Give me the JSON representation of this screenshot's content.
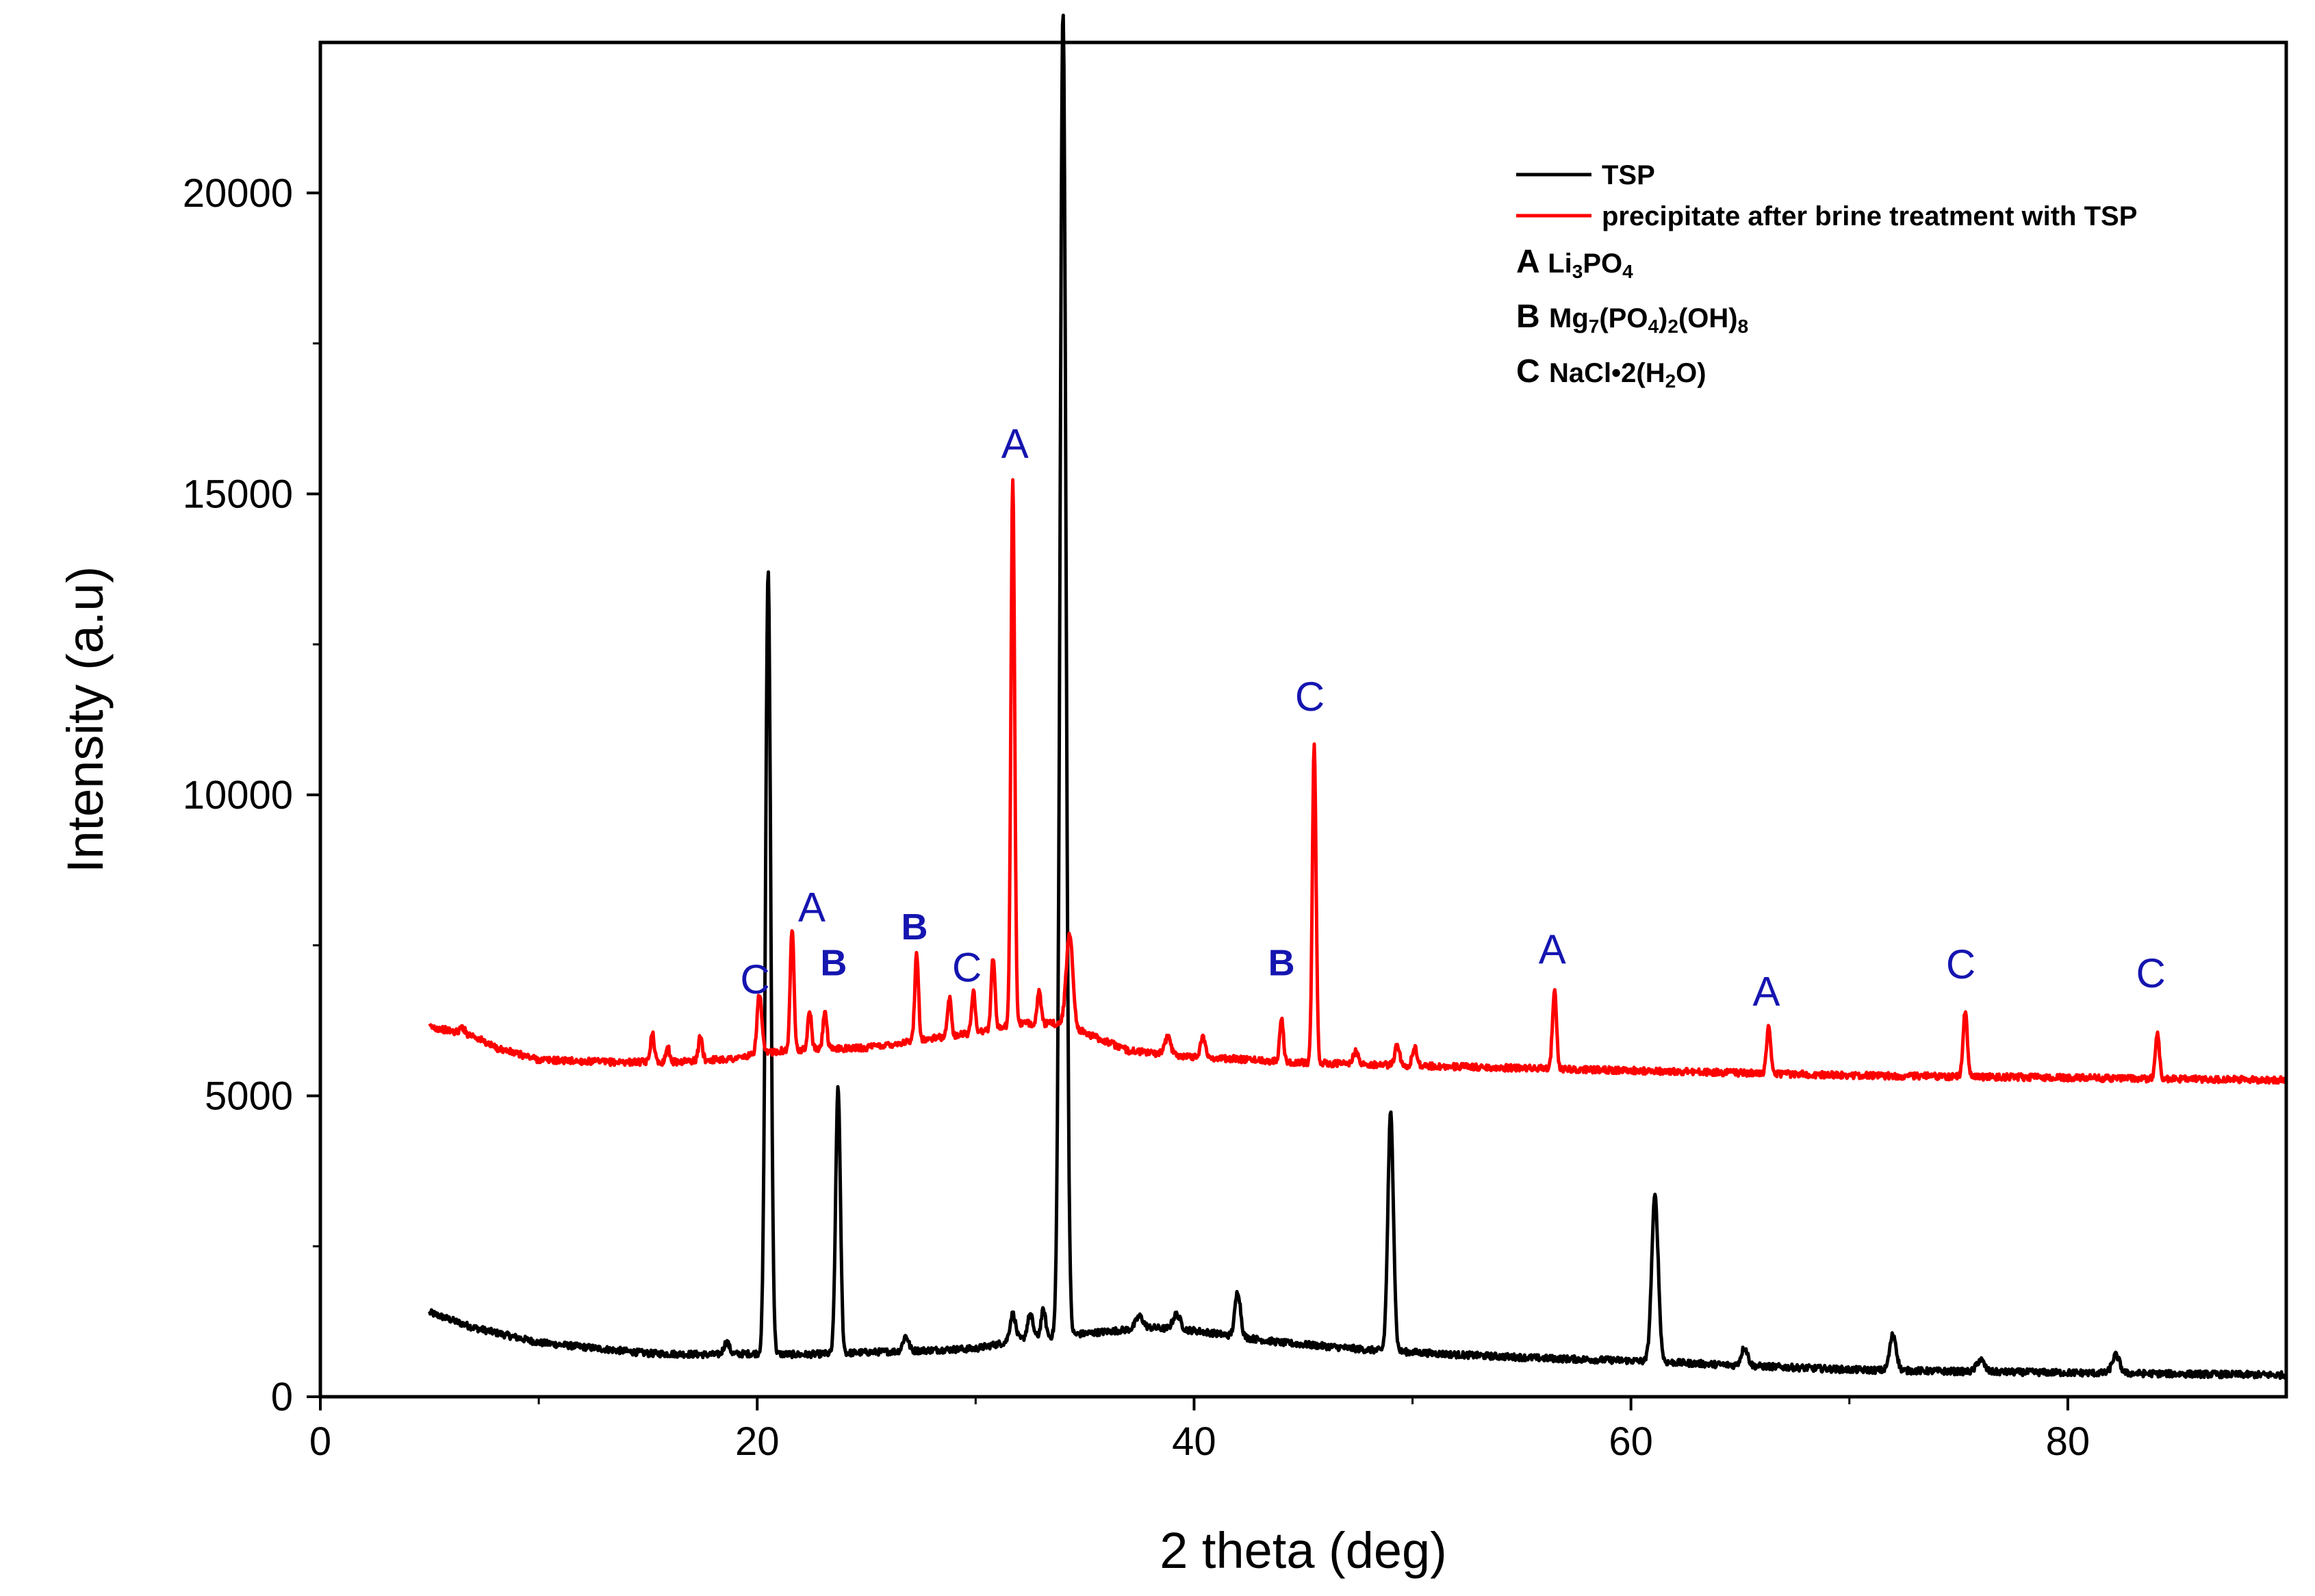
{
  "chart_data": {
    "type": "line",
    "xlabel": "2 theta (deg)",
    "ylabel": "Intensity (a.u)",
    "xlim": [
      0,
      90
    ],
    "ylim": [
      0,
      22500
    ],
    "xticks": [
      0,
      20,
      40,
      60,
      80
    ],
    "yticks": [
      0,
      5000,
      10000,
      15000,
      20000
    ],
    "grid": false,
    "legend_position": "top-right",
    "legend": [
      {
        "label": "TSP",
        "color": "#000000"
      },
      {
        "label": "precipitate after brine treatment with TSP",
        "color": "#ff0000"
      }
    ],
    "phase_key": [
      {
        "letter": "A",
        "formula": "Li3PO4",
        "parts": [
          [
            "Li",
            "n"
          ],
          [
            "3",
            "sub"
          ],
          [
            "PO",
            "n"
          ],
          [
            "4",
            "sub"
          ]
        ]
      },
      {
        "letter": "B",
        "formula": "Mg7(PO4)2(OH)8",
        "parts": [
          [
            "Mg",
            "n"
          ],
          [
            "7",
            "sub"
          ],
          [
            "(PO",
            "n"
          ],
          [
            "4",
            "sub"
          ],
          [
            ")",
            "n"
          ],
          [
            "2",
            "sub"
          ],
          [
            "(OH)",
            "n"
          ],
          [
            "8",
            "sub"
          ]
        ]
      },
      {
        "letter": "C",
        "formula": "NaCl•2(H2O)",
        "parts": [
          [
            "NaCl•2(H",
            "n"
          ],
          [
            "2",
            "sub"
          ],
          [
            "O)",
            "n"
          ]
        ]
      }
    ],
    "series": [
      {
        "name": "TSP",
        "color": "#000000",
        "baseline": [
          [
            5,
            1400
          ],
          [
            7,
            1150
          ],
          [
            10,
            900
          ],
          [
            15,
            720
          ],
          [
            18,
            700
          ],
          [
            20,
            720
          ],
          [
            22,
            700
          ],
          [
            26,
            750
          ],
          [
            30,
            800
          ],
          [
            32,
            950
          ],
          [
            35,
            1050
          ],
          [
            38,
            1150
          ],
          [
            40,
            1100
          ],
          [
            44,
            900
          ],
          [
            48,
            780
          ],
          [
            52,
            700
          ],
          [
            56,
            640
          ],
          [
            60,
            600
          ],
          [
            65,
            520
          ],
          [
            70,
            450
          ],
          [
            75,
            420
          ],
          [
            80,
            400
          ],
          [
            85,
            380
          ],
          [
            90,
            360
          ]
        ],
        "peaks": [
          [
            20.5,
            13000,
            0.28
          ],
          [
            18.6,
            200,
            0.3
          ],
          [
            23.7,
            4450,
            0.25
          ],
          [
            26.8,
            250,
            0.3
          ],
          [
            31.7,
            450,
            0.3
          ],
          [
            32.5,
            400,
            0.3
          ],
          [
            33.1,
            450,
            0.25
          ],
          [
            34.0,
            22000,
            0.32
          ],
          [
            37.5,
            200,
            0.4
          ],
          [
            39.2,
            250,
            0.4
          ],
          [
            42.0,
            750,
            0.3
          ],
          [
            49.0,
            3950,
            0.3
          ],
          [
            61.1,
            2750,
            0.35
          ],
          [
            65.2,
            300,
            0.35
          ],
          [
            72.0,
            600,
            0.35
          ],
          [
            76.0,
            200,
            0.4
          ],
          [
            82.2,
            300,
            0.4
          ]
        ]
      },
      {
        "name": "precipitate after brine treatment with TSP",
        "color": "#ff0000",
        "baseline": [
          [
            5,
            6150
          ],
          [
            7,
            6000
          ],
          [
            8,
            5800
          ],
          [
            10,
            5600
          ],
          [
            13,
            5560
          ],
          [
            16,
            5560
          ],
          [
            19,
            5620
          ],
          [
            21,
            5750
          ],
          [
            25,
            5800
          ],
          [
            28,
            5950
          ],
          [
            30,
            6050
          ],
          [
            32,
            6200
          ],
          [
            34,
            6200
          ],
          [
            35,
            6050
          ],
          [
            37,
            5750
          ],
          [
            40,
            5650
          ],
          [
            45,
            5550
          ],
          [
            50,
            5500
          ],
          [
            60,
            5420
          ],
          [
            70,
            5340
          ],
          [
            80,
            5300
          ],
          [
            90,
            5260
          ]
        ],
        "peaks": [
          [
            6.5,
            100,
            0.25
          ],
          [
            15.2,
            500,
            0.2
          ],
          [
            15.9,
            250,
            0.2
          ],
          [
            17.4,
            400,
            0.2
          ],
          [
            20.1,
            1000,
            0.25
          ],
          [
            21.6,
            2050,
            0.2
          ],
          [
            22.4,
            650,
            0.2
          ],
          [
            23.1,
            650,
            0.2
          ],
          [
            27.3,
            1450,
            0.2
          ],
          [
            28.8,
            650,
            0.2
          ],
          [
            29.9,
            700,
            0.2
          ],
          [
            30.8,
            1200,
            0.2
          ],
          [
            31.7,
            9050,
            0.2
          ],
          [
            32.9,
            550,
            0.2
          ],
          [
            34.3,
            1550,
            0.35
          ],
          [
            38.8,
            300,
            0.3
          ],
          [
            40.4,
            350,
            0.25
          ],
          [
            44.0,
            750,
            0.2
          ],
          [
            45.5,
            5300,
            0.2
          ],
          [
            47.4,
            200,
            0.3
          ],
          [
            49.3,
            350,
            0.25
          ],
          [
            50.1,
            300,
            0.25
          ],
          [
            56.5,
            1300,
            0.22
          ],
          [
            66.3,
            750,
            0.22
          ],
          [
            75.3,
            1100,
            0.22
          ],
          [
            84.1,
            750,
            0.22
          ]
        ]
      }
    ],
    "annotations": [
      {
        "text": "C",
        "x": 19.9,
        "y": 6700,
        "bold": false
      },
      {
        "text": "A",
        "x": 22.5,
        "y": 7900,
        "bold": false
      },
      {
        "text": "B",
        "x": 23.5,
        "y": 7000,
        "bold": true
      },
      {
        "text": "B",
        "x": 27.2,
        "y": 7600,
        "bold": true
      },
      {
        "text": "C",
        "x": 29.6,
        "y": 6900,
        "bold": false
      },
      {
        "text": "A",
        "x": 31.8,
        "y": 15600,
        "bold": false
      },
      {
        "text": "C",
        "x": 45.3,
        "y": 11400,
        "bold": false
      },
      {
        "text": "B",
        "x": 44.0,
        "y": 7000,
        "bold": true
      },
      {
        "text": "A",
        "x": 56.4,
        "y": 7200,
        "bold": false
      },
      {
        "text": "A",
        "x": 66.2,
        "y": 6500,
        "bold": false
      },
      {
        "text": "C",
        "x": 75.1,
        "y": 6950,
        "bold": false
      },
      {
        "text": "C",
        "x": 83.8,
        "y": 6800,
        "bold": false
      }
    ]
  }
}
